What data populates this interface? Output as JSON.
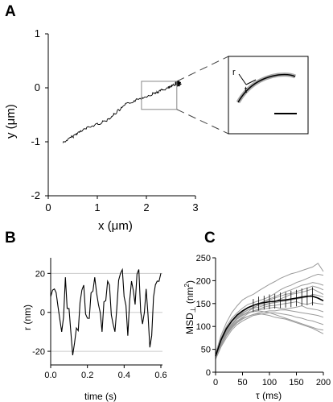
{
  "panels": {
    "A": "A",
    "B": "B",
    "C": "C"
  },
  "colors": {
    "trace": "#000000",
    "gray": "#9a9a9a",
    "box": "#888888",
    "grid": "#cccccc"
  },
  "chart_data": [
    {
      "id": "A",
      "type": "line",
      "xlabel_base": "x (",
      "xlabel_unit": "μm",
      "xlabel_end": ")",
      "ylabel_base": "y (",
      "ylabel_unit": "μm",
      "ylabel_end": ")",
      "xlim": [
        0,
        3
      ],
      "ylim": [
        -2,
        1
      ],
      "xticks": [
        0,
        1,
        2,
        3
      ],
      "xtick_labels": [
        "0",
        "1",
        "2",
        "3"
      ],
      "yticks": [
        1,
        0,
        -1,
        -2
      ],
      "ytick_labels": [
        "1",
        "0",
        "-1",
        "-2"
      ],
      "trajectory_anchors": [
        [
          0.3,
          -1.02
        ],
        [
          0.7,
          -0.78
        ],
        [
          1.2,
          -0.6
        ],
        [
          1.6,
          -0.3
        ],
        [
          2.1,
          -0.12
        ],
        [
          2.45,
          0.0
        ],
        [
          2.62,
          0.08
        ]
      ],
      "zoom_box": {
        "x": [
          1.9,
          2.62
        ],
        "y": [
          -0.4,
          0.12
        ]
      },
      "inset": {
        "curve": "arc",
        "axis_label_1": "r",
        "axis_label_2": "t"
      }
    },
    {
      "id": "B",
      "type": "line",
      "xlabel": "time (s)",
      "ylabel": "r (nm)",
      "xlim": [
        0,
        0.6
      ],
      "ylim": [
        -27,
        28
      ],
      "xticks": [
        0.0,
        0.2,
        0.4,
        0.6
      ],
      "xtick_labels": [
        "0.0",
        "0.2",
        "0.4",
        "0.6"
      ],
      "yticks": [
        20,
        0,
        -20
      ],
      "ytick_labels": [
        "20",
        "0",
        "-20"
      ],
      "grid_y": [
        20,
        0,
        -20
      ],
      "series": [
        {
          "x": [
            0.0,
            0.02,
            0.04,
            0.06,
            0.08,
            0.1,
            0.12,
            0.14,
            0.16,
            0.18,
            0.2,
            0.22,
            0.24,
            0.26,
            0.28,
            0.3,
            0.32,
            0.34,
            0.36,
            0.38,
            0.4,
            0.42,
            0.44,
            0.46,
            0.48,
            0.5,
            0.52,
            0.54,
            0.56,
            0.58,
            0.6
          ],
          "values": [
            8,
            12,
            3,
            -10,
            18,
            2,
            -22,
            -8,
            5,
            14,
            -3,
            10,
            18,
            4,
            -10,
            6,
            14,
            -6,
            2,
            20,
            8,
            -12,
            16,
            4,
            22,
            -6,
            12,
            -18,
            8,
            16,
            20
          ]
        }
      ]
    },
    {
      "id": "C",
      "type": "line",
      "xlabel": "τ (ms)",
      "ylabel_base": "MSD",
      "ylabel_sub": "⊥",
      "ylabel_unit": " (nm",
      "ylabel_sup": "2",
      "ylabel_end": ")",
      "xlim": [
        0,
        200
      ],
      "ylim": [
        0,
        250
      ],
      "xticks": [
        0,
        50,
        100,
        150,
        200
      ],
      "xtick_labels": [
        "0",
        "50",
        "100",
        "150",
        "200"
      ],
      "yticks": [
        0,
        50,
        100,
        150,
        200,
        250
      ],
      "ytick_labels": [
        "0",
        "50",
        "100",
        "150",
        "200",
        "250"
      ],
      "mean_series": {
        "x": [
          0,
          10,
          20,
          30,
          40,
          50,
          60,
          70,
          80,
          90,
          100,
          110,
          120,
          130,
          140,
          150,
          160,
          170,
          180,
          190,
          200
        ],
        "values": [
          35,
          70,
          95,
          112,
          125,
          134,
          141,
          146,
          150,
          152,
          154,
          155,
          157,
          158,
          160,
          162,
          164,
          166,
          166,
          162,
          156
        ]
      },
      "gray_series": [
        [
          40,
          80,
          108,
          130,
          145,
          158,
          165,
          170,
          178,
          185,
          192,
          198,
          205,
          210,
          215,
          218,
          222,
          226,
          230,
          238,
          220
        ],
        [
          35,
          75,
          100,
          118,
          130,
          140,
          148,
          152,
          156,
          160,
          165,
          172,
          180,
          186,
          190,
          196,
          200,
          205,
          210,
          214,
          212
        ],
        [
          38,
          68,
          92,
          110,
          120,
          128,
          136,
          140,
          148,
          155,
          160,
          165,
          170,
          176,
          180,
          185,
          190,
          192,
          196,
          194,
          190
        ],
        [
          30,
          62,
          86,
          102,
          116,
          124,
          132,
          140,
          142,
          146,
          150,
          154,
          160,
          165,
          170,
          172,
          175,
          178,
          182,
          176,
          170
        ],
        [
          36,
          72,
          96,
          112,
          122,
          130,
          136,
          142,
          146,
          148,
          150,
          152,
          154,
          156,
          158,
          160,
          162,
          164,
          170,
          168,
          164
        ],
        [
          32,
          60,
          84,
          100,
          112,
          120,
          128,
          134,
          138,
          142,
          145,
          146,
          148,
          150,
          152,
          154,
          150,
          148,
          152,
          150,
          148
        ],
        [
          34,
          66,
          90,
          106,
          118,
          126,
          130,
          134,
          136,
          138,
          140,
          142,
          140,
          138,
          140,
          142,
          145,
          140,
          138,
          136,
          132
        ],
        [
          30,
          58,
          80,
          96,
          108,
          116,
          122,
          126,
          130,
          132,
          134,
          134,
          136,
          136,
          134,
          132,
          130,
          128,
          126,
          124,
          120
        ],
        [
          28,
          55,
          75,
          92,
          104,
          112,
          118,
          124,
          126,
          128,
          130,
          130,
          128,
          126,
          124,
          120,
          118,
          114,
          112,
          108,
          104
        ],
        [
          30,
          60,
          82,
          98,
          110,
          118,
          122,
          126,
          128,
          126,
          124,
          120,
          118,
          116,
          112,
          108,
          104,
          100,
          96,
          90,
          84
        ],
        [
          33,
          64,
          88,
          104,
          116,
          124,
          130,
          132,
          134,
          132,
          130,
          126,
          122,
          118,
          114,
          110,
          106,
          102,
          98,
          94,
          92
        ],
        [
          36,
          70,
          94,
          110,
          122,
          132,
          140,
          146,
          150,
          155,
          158,
          162,
          166,
          170,
          172,
          176,
          180,
          184,
          188,
          185,
          180
        ]
      ],
      "error_bars": {
        "x": [
          70,
          80,
          90,
          100,
          110,
          120,
          130,
          140,
          150,
          160,
          170,
          180
        ],
        "half_width": [
          14,
          15,
          15,
          16,
          16,
          17,
          17,
          18,
          18,
          19,
          19,
          20
        ]
      }
    }
  ]
}
